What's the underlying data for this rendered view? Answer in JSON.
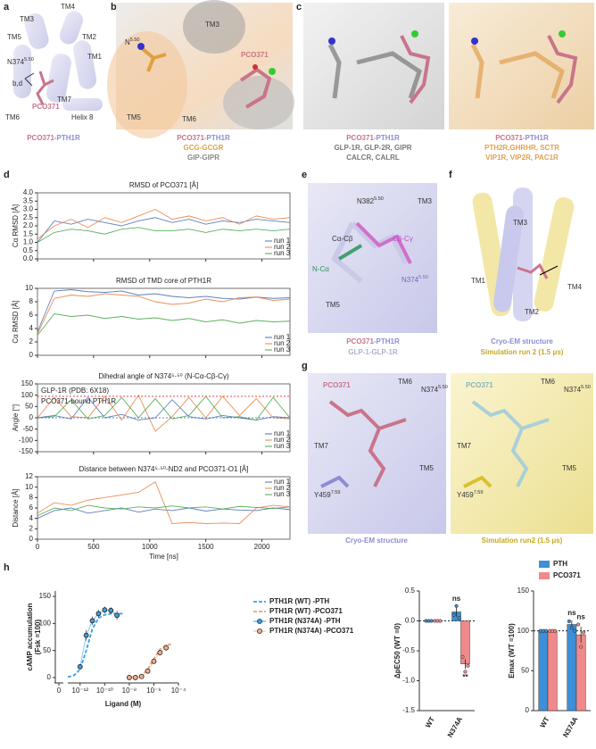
{
  "panels": {
    "a": {
      "letter": "a",
      "labels": [
        "TM3",
        "TM4",
        "TM5",
        "TM2",
        "TM1",
        "TM7",
        "TM6",
        "Helix 8",
        "b,d",
        "PCO371"
      ],
      "residue": {
        "name": "N374",
        "sup": "5.50"
      },
      "caption": [
        "PCO371",
        "-PTH1R"
      ]
    },
    "b": {
      "letter": "b",
      "labels": [
        "TM3",
        "PCO371",
        "TM5",
        "TM6"
      ],
      "residue": {
        "name": "N",
        "sup": "5.50"
      },
      "captions": [
        [
          "PCO371",
          "-PTH1R"
        ],
        "GCG-GCGR",
        "GIP-GIPR"
      ]
    },
    "c": {
      "letter": "c",
      "left": [
        [
          "PCO371",
          "-PTH1R"
        ],
        "GLP-1R, GLP-2R, GIPR",
        "CALCR, CALRL"
      ],
      "right": [
        [
          "PCO371",
          "-PTH1R"
        ],
        "PTH2R,GHRHR, SCTR",
        "VIP1R, VIP2R, PAC1R"
      ]
    },
    "d": {
      "letter": "d"
    },
    "e": {
      "letter": "e",
      "labels": [
        "TM3",
        "Cα-Cβ",
        "Cβ-Cγ",
        "N-Cα",
        "TM5"
      ],
      "residues": [
        {
          "name": "N382",
          "sup": "5.50"
        },
        {
          "name": "N374",
          "sup": "5.50"
        }
      ],
      "captions": [
        [
          "PCO371",
          "-PTH1R"
        ],
        "GLP-1-GLP-1R"
      ]
    },
    "f": {
      "letter": "f",
      "labels": [
        "TM3",
        "TM1",
        "TM4",
        "TM2"
      ],
      "captions": [
        "Cryo-EM structure",
        "Simulation run 2 (1.5 μs)"
      ]
    },
    "g": {
      "letter": "g",
      "left": {
        "labels": [
          "PCO371",
          "TM6",
          "TM7",
          "TM5"
        ],
        "residues": [
          {
            "name": "N374",
            "sup": "5.50"
          },
          {
            "name": "Y459",
            "sup": "7.59"
          }
        ],
        "caption": "Cryo-EM structure"
      },
      "right": {
        "labels": [
          "PCO371",
          "TM6",
          "TM7",
          "TM5"
        ],
        "residues": [
          {
            "name": "N374",
            "sup": "5.50"
          },
          {
            "name": "Y459",
            "sup": "7.59"
          }
        ],
        "caption": "Simulation run2 (1.5 μs)"
      }
    },
    "h": {
      "letter": "h"
    }
  },
  "chart_data": [
    {
      "type": "line",
      "title": "RMSD of PCO371 [Å]",
      "ylabel": "Cα RMSD [Å]",
      "x": [
        0,
        150,
        300,
        450,
        600,
        750,
        900,
        1050,
        1200,
        1350,
        1500,
        1650,
        1800,
        1950,
        2100,
        2250
      ],
      "xlim": [
        0,
        2250
      ],
      "xticks": [
        0,
        500,
        1000,
        1500,
        2000
      ],
      "ylim": [
        0,
        4
      ],
      "yticks": [
        {
          "value": 0,
          "label": "0.0"
        },
        {
          "value": 0.5,
          "label": "0.5"
        },
        {
          "value": 1,
          "label": "1.0"
        },
        {
          "value": 1.5,
          "label": "1.5"
        },
        {
          "value": 2,
          "label": "2.0"
        },
        {
          "value": 2.5,
          "label": "2.5"
        },
        {
          "value": 3,
          "label": "3.0"
        },
        {
          "value": 3.5,
          "label": "3.5"
        },
        {
          "value": 4,
          "label": "4.0"
        }
      ],
      "legend": "lower right",
      "series": [
        {
          "name": "run 1",
          "color": "#4d72b8",
          "values": [
            1.0,
            2.3,
            2.1,
            2.4,
            2.2,
            2.0,
            2.3,
            2.5,
            2.2,
            2.4,
            2.1,
            2.3,
            2.2,
            2.4,
            2.3,
            2.2
          ]
        },
        {
          "name": "run 2",
          "color": "#e8834a",
          "values": [
            1.2,
            2.0,
            2.4,
            1.9,
            2.5,
            2.2,
            2.6,
            3.0,
            2.4,
            2.6,
            2.3,
            2.5,
            2.1,
            2.6,
            2.4,
            2.5
          ]
        },
        {
          "name": "run 3",
          "color": "#4aa84a",
          "values": [
            1.0,
            1.6,
            1.8,
            1.7,
            1.5,
            1.8,
            1.9,
            1.7,
            1.7,
            1.8,
            1.6,
            1.8,
            1.7,
            1.8,
            1.7,
            1.8
          ]
        }
      ]
    },
    {
      "type": "line",
      "title": "RMSD of TMD core of PTH1R",
      "ylabel": "Cα RMSD [Å]",
      "x": [
        0,
        150,
        300,
        450,
        600,
        750,
        900,
        1050,
        1200,
        1350,
        1500,
        1650,
        1800,
        1950,
        2100,
        2250
      ],
      "xlim": [
        0,
        2250
      ],
      "xticks": [
        0,
        500,
        1000,
        1500,
        2000
      ],
      "ylim": [
        0,
        10
      ],
      "yticks": [
        0,
        2,
        4,
        6,
        8,
        10
      ],
      "legend": "lower right",
      "series": [
        {
          "name": "run 1",
          "color": "#4d72b8",
          "values": [
            3.5,
            9.6,
            9.8,
            9.5,
            9.4,
            9.6,
            9.0,
            9.2,
            8.8,
            8.6,
            8.8,
            8.5,
            8.4,
            8.7,
            8.5,
            8.6
          ]
        },
        {
          "name": "run 2",
          "color": "#e8834a",
          "values": [
            3.2,
            8.5,
            9.0,
            8.8,
            9.2,
            9.0,
            8.8,
            8.0,
            7.6,
            7.8,
            8.4,
            8.0,
            8.6,
            8.7,
            8.2,
            8.4
          ]
        },
        {
          "name": "run 3",
          "color": "#4aa84a",
          "values": [
            3.0,
            6.2,
            5.8,
            6.0,
            5.5,
            5.8,
            5.4,
            5.6,
            5.2,
            5.5,
            5.0,
            5.3,
            4.8,
            5.2,
            5.0,
            5.1
          ]
        }
      ]
    },
    {
      "type": "line",
      "title": "Dihedral angle of N374⁵·⁵⁰ (N-Cα-Cβ-Cγ)",
      "ylabel": "Angle [°]",
      "x": [
        0,
        150,
        300,
        450,
        600,
        750,
        900,
        1050,
        1200,
        1350,
        1500,
        1650,
        1800,
        1950,
        2100,
        2250
      ],
      "xlim": [
        0,
        2250
      ],
      "xticks": [
        0,
        500,
        1000,
        1500,
        2000
      ],
      "ylim": [
        -150,
        150
      ],
      "yticks": [
        -150,
        -100,
        -50,
        0,
        50,
        100,
        150
      ],
      "legend": "lower right",
      "references": [
        {
          "label": "GLP-1R (PDB: 6X18)",
          "value": 95,
          "color": "#e03030"
        },
        {
          "label": "PCO371-bound PTH1R",
          "value": 0,
          "color": "#2a6ab0"
        }
      ],
      "series": [
        {
          "name": "run 1",
          "color": "#4d72b8",
          "values": [
            0,
            10,
            -5,
            90,
            0,
            15,
            -10,
            0,
            80,
            5,
            -5,
            10,
            0,
            -10,
            5,
            0
          ]
        },
        {
          "name": "run 2",
          "color": "#e8834a",
          "values": [
            0,
            90,
            5,
            0,
            95,
            -10,
            100,
            -60,
            5,
            90,
            0,
            95,
            10,
            85,
            0,
            -5
          ]
        },
        {
          "name": "run 3",
          "color": "#4aa84a",
          "values": [
            0,
            5,
            80,
            -5,
            10,
            90,
            0,
            85,
            -5,
            10,
            95,
            0,
            5,
            -10,
            90,
            0
          ]
        }
      ]
    },
    {
      "type": "line",
      "title": "Distance between N374⁵·⁵⁰-ND2 and PCO371-O1 [Å]",
      "ylabel": "Distance [Å]",
      "xlabel": "Time [ns]",
      "x": [
        0,
        150,
        300,
        450,
        600,
        750,
        900,
        1050,
        1200,
        1350,
        1500,
        1650,
        1800,
        1950,
        2100,
        2250
      ],
      "xlim": [
        0,
        2250
      ],
      "xticks": [
        0,
        500,
        1000,
        1500,
        2000
      ],
      "ylim": [
        0,
        12
      ],
      "yticks": [
        0,
        2,
        4,
        6,
        8,
        10,
        12
      ],
      "legend": "upper right",
      "series": [
        {
          "name": "run 1",
          "color": "#4d72b8",
          "values": [
            4,
            5.5,
            6,
            5,
            5.5,
            6,
            5.2,
            5.8,
            5.5,
            6,
            5.4,
            5.8,
            5.6,
            5.5,
            6,
            5.7
          ]
        },
        {
          "name": "run 2",
          "color": "#e8834a",
          "values": [
            5,
            7,
            6.5,
            7.5,
            8,
            8.5,
            9,
            11,
            3,
            3.2,
            3,
            3.1,
            3,
            6,
            6.5,
            6.2
          ]
        },
        {
          "name": "run 3",
          "color": "#4aa84a",
          "values": [
            4.5,
            6,
            5.5,
            6.5,
            6,
            5.8,
            6.2,
            6,
            6.4,
            6,
            6.2,
            5.8,
            6.3,
            6.1,
            5.9,
            6.2
          ]
        }
      ]
    },
    {
      "type": "dose-response",
      "ylabel": "cAMP accumulation",
      "ylabel2": "(Fsk =100)",
      "xlabel": "Ligand (M)",
      "xscale": "log",
      "xlim": [
        1e-13,
        0.0001
      ],
      "xbreak_tick": 0,
      "xticks": [
        {
          "value": 1e-12,
          "label": "10⁻¹²"
        },
        {
          "value": 1e-10,
          "label": "10⁻¹⁰"
        },
        {
          "value": 1e-08,
          "label": "10⁻⁸"
        },
        {
          "value": 1e-06,
          "label": "10⁻⁶"
        },
        {
          "value": 0.0001,
          "label": "10⁻⁴"
        }
      ],
      "ylim": [
        -10,
        160
      ],
      "yticks": [
        0,
        50,
        100,
        150
      ],
      "series": [
        {
          "name": "PTH1R (WT) -PTH",
          "color": "#3aa0e0",
          "style": "dashed",
          "x": [
            1e-13,
            3.16e-13,
            1e-12,
            3.16e-12,
            1e-11,
            3.16e-11,
            1e-10,
            3.16e-10,
            1e-09,
            3.16e-09
          ],
          "values": [
            1,
            4,
            15,
            50,
            90,
            110,
            116,
            118,
            118,
            118
          ]
        },
        {
          "name": "PTH1R (WT) -PCO371",
          "color": "#f0a070",
          "style": "dashed",
          "x": [
            1e-08,
            3.16e-08,
            1e-07,
            3.16e-07,
            1e-06,
            3.16e-06,
            1e-05,
            3.16e-05
          ],
          "values": [
            0,
            1,
            4,
            15,
            35,
            52,
            60,
            62
          ]
        },
        {
          "name": "PTH1R (N374A) -PTH",
          "color": "#3aa0e0",
          "style": "markers",
          "x": [
            1e-12,
            3.16e-12,
            1e-11,
            3.16e-11,
            1e-10,
            3.16e-10,
            1e-09
          ],
          "values": [
            20,
            78,
            105,
            118,
            125,
            124,
            115
          ],
          "errors": [
            5,
            10,
            8,
            7,
            6,
            6,
            8
          ]
        },
        {
          "name": "PTH1R (N374A) -PCO371",
          "color": "#f4b090",
          "style": "markers",
          "x": [
            1e-08,
            3.16e-08,
            1e-07,
            3.16e-07,
            1e-06,
            3.16e-06,
            1e-05
          ],
          "values": [
            0,
            0,
            2,
            12,
            30,
            46,
            55
          ],
          "errors": [
            2,
            2,
            3,
            4,
            5,
            5,
            6
          ]
        }
      ]
    },
    {
      "type": "bar",
      "ylabel": "ΔpEC50 (WT =0)",
      "categories": [
        "WT",
        "N374A"
      ],
      "ylim": [
        -1.5,
        0.5
      ],
      "yticks": [
        {
          "value": 0.5,
          "label": "0.5"
        },
        {
          "value": 0,
          "label": "0.0"
        },
        {
          "value": -0.5,
          "label": "-0.5"
        },
        {
          "value": -1,
          "label": "-1.0"
        },
        {
          "value": -1.5,
          "label": "-1.5"
        }
      ],
      "reference": 0,
      "series": [
        {
          "name": "PTH",
          "color": "#3d8fd8",
          "values": [
            0,
            0.15
          ],
          "errors": [
            0,
            0.08
          ],
          "points": [
            [
              0,
              0,
              0
            ],
            [
              0.1,
              0.25,
              0.05
            ]
          ]
        },
        {
          "name": "PCO371",
          "color": "#f08a8a",
          "values": [
            0,
            -0.72
          ],
          "errors": [
            0,
            0.08
          ],
          "points": [
            [
              0,
              0,
              0
            ],
            [
              -0.6,
              -0.85,
              -0.75
            ]
          ]
        }
      ],
      "annotations": [
        {
          "category": 1,
          "series": 0,
          "text": "ns"
        },
        {
          "category": 1,
          "series": 1,
          "text": "**"
        }
      ]
    },
    {
      "type": "bar",
      "ylabel": "Emax (WT =100)",
      "categories": [
        "WT",
        "N374A"
      ],
      "ylim": [
        0,
        150
      ],
      "yticks": [
        0,
        50,
        100,
        150
      ],
      "reference": 100,
      "legend": "top",
      "series": [
        {
          "name": "PTH",
          "color": "#3d8fd8",
          "values": [
            100,
            108
          ],
          "errors": [
            0,
            5
          ],
          "points": [
            [
              100,
              100,
              100
            ],
            [
              112,
              104,
              100
            ]
          ]
        },
        {
          "name": "PCO371",
          "color": "#f08a8a",
          "values": [
            100,
            95
          ],
          "errors": [
            0,
            10
          ],
          "points": [
            [
              100,
              100,
              100
            ],
            [
              108,
              80,
              98
            ]
          ]
        }
      ],
      "annotations": [
        {
          "category": 1,
          "series": 0,
          "text": "ns"
        },
        {
          "category": 1,
          "series": 1,
          "text": "ns"
        }
      ]
    }
  ]
}
